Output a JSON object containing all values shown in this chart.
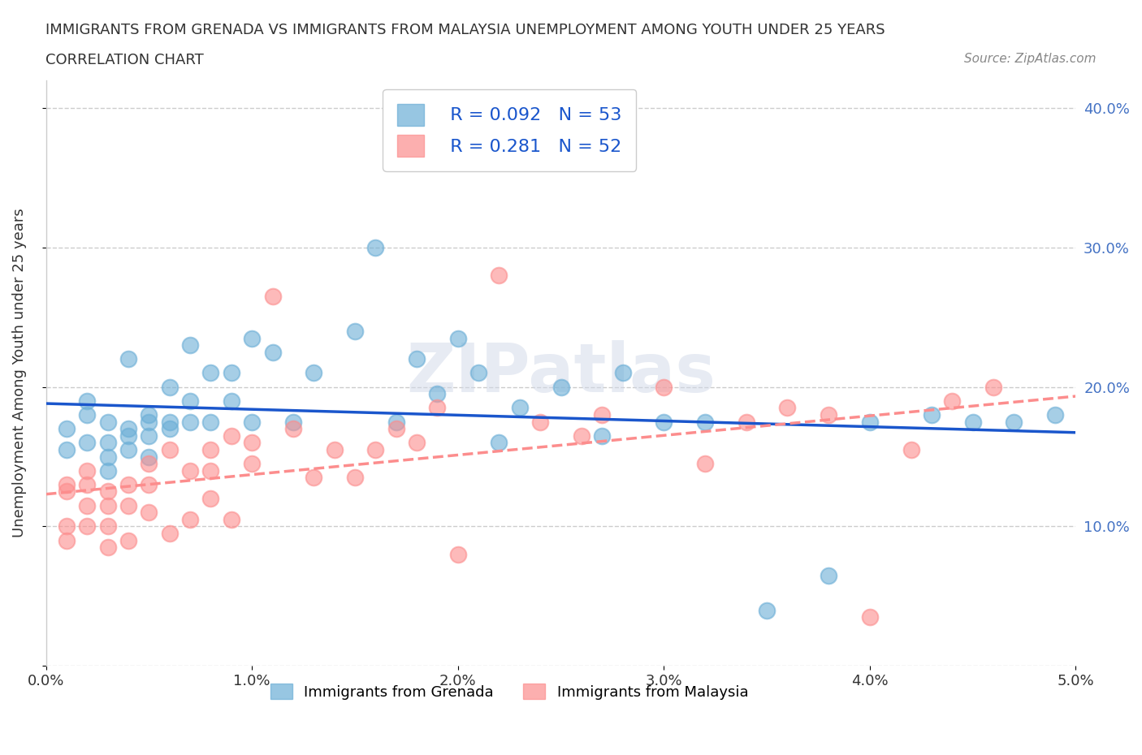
{
  "title_line1": "IMMIGRANTS FROM GRENADA VS IMMIGRANTS FROM MALAYSIA UNEMPLOYMENT AMONG YOUTH UNDER 25 YEARS",
  "title_line2": "CORRELATION CHART",
  "source_text": "Source: ZipAtlas.com",
  "xlabel": "",
  "ylabel": "Unemployment Among Youth under 25 years",
  "xlim": [
    0.0,
    0.05
  ],
  "ylim": [
    0.0,
    0.42
  ],
  "xticks": [
    0.0,
    0.01,
    0.02,
    0.03,
    0.04,
    0.05
  ],
  "xtick_labels": [
    "0.0%",
    "1.0%",
    "2.0%",
    "3.0%",
    "4.0%",
    "5.0%"
  ],
  "yticks": [
    0.0,
    0.1,
    0.2,
    0.3,
    0.4
  ],
  "ytick_labels": [
    "",
    "10.0%",
    "20.0%",
    "30.0%",
    "40.0%"
  ],
  "grenada_color": "#6baed6",
  "malaysia_color": "#fc8d8d",
  "grenada_R": 0.092,
  "grenada_N": 53,
  "malaysia_R": 0.281,
  "malaysia_N": 52,
  "legend_R_color": "#1a56cc",
  "legend_label1": "Immigrants from Grenada",
  "legend_label2": "Immigrants from Malaysia",
  "watermark": "ZIPatlas",
  "background_color": "#ffffff",
  "grenada_x": [
    0.001,
    0.001,
    0.002,
    0.002,
    0.002,
    0.003,
    0.003,
    0.003,
    0.003,
    0.004,
    0.004,
    0.004,
    0.004,
    0.005,
    0.005,
    0.005,
    0.005,
    0.006,
    0.006,
    0.006,
    0.007,
    0.007,
    0.007,
    0.008,
    0.008,
    0.009,
    0.009,
    0.01,
    0.01,
    0.011,
    0.012,
    0.013,
    0.015,
    0.016,
    0.017,
    0.018,
    0.019,
    0.02,
    0.021,
    0.022,
    0.023,
    0.025,
    0.027,
    0.028,
    0.03,
    0.032,
    0.035,
    0.038,
    0.04,
    0.043,
    0.045,
    0.047,
    0.049
  ],
  "grenada_y": [
    0.155,
    0.17,
    0.18,
    0.16,
    0.19,
    0.175,
    0.16,
    0.15,
    0.14,
    0.17,
    0.165,
    0.155,
    0.22,
    0.18,
    0.175,
    0.165,
    0.15,
    0.2,
    0.175,
    0.17,
    0.23,
    0.19,
    0.175,
    0.21,
    0.175,
    0.19,
    0.21,
    0.235,
    0.175,
    0.225,
    0.175,
    0.21,
    0.24,
    0.3,
    0.175,
    0.22,
    0.195,
    0.235,
    0.21,
    0.16,
    0.185,
    0.2,
    0.165,
    0.21,
    0.175,
    0.175,
    0.04,
    0.065,
    0.175,
    0.18,
    0.175,
    0.175,
    0.18
  ],
  "malaysia_x": [
    0.001,
    0.001,
    0.001,
    0.001,
    0.002,
    0.002,
    0.002,
    0.002,
    0.003,
    0.003,
    0.003,
    0.003,
    0.004,
    0.004,
    0.004,
    0.005,
    0.005,
    0.005,
    0.006,
    0.006,
    0.007,
    0.007,
    0.008,
    0.008,
    0.008,
    0.009,
    0.009,
    0.01,
    0.01,
    0.011,
    0.012,
    0.013,
    0.014,
    0.015,
    0.016,
    0.017,
    0.018,
    0.019,
    0.02,
    0.022,
    0.024,
    0.026,
    0.027,
    0.03,
    0.032,
    0.034,
    0.036,
    0.038,
    0.04,
    0.042,
    0.044,
    0.046
  ],
  "malaysia_y": [
    0.125,
    0.13,
    0.1,
    0.09,
    0.14,
    0.13,
    0.115,
    0.1,
    0.125,
    0.115,
    0.1,
    0.085,
    0.13,
    0.115,
    0.09,
    0.145,
    0.13,
    0.11,
    0.155,
    0.095,
    0.14,
    0.105,
    0.155,
    0.14,
    0.12,
    0.165,
    0.105,
    0.16,
    0.145,
    0.265,
    0.17,
    0.135,
    0.155,
    0.135,
    0.155,
    0.17,
    0.16,
    0.185,
    0.08,
    0.28,
    0.175,
    0.165,
    0.18,
    0.2,
    0.145,
    0.175,
    0.185,
    0.18,
    0.035,
    0.155,
    0.19,
    0.2
  ]
}
